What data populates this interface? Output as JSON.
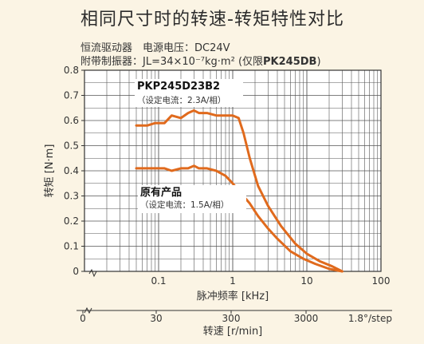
{
  "page_title": "相同尺寸时的转速-转矩特性对比",
  "conditions": {
    "line1": "恒流驱动器　电源电压：DC24V",
    "line2_prefix": "附带制振器：JL=34×10⁻⁷kg·m² (仅限",
    "line2_bold": "PK245DB",
    "line2_suffix": ")"
  },
  "chart_data": {
    "type": "line",
    "xscale": "log",
    "xlabel": "脉冲频率 [kHz]",
    "ylabel": "转矩 [N·m]",
    "ylim": [
      0,
      0.8
    ],
    "xlim": [
      0.01,
      100
    ],
    "grid": true,
    "y_ticks": [
      "0",
      "0.1",
      "0.2",
      "0.3",
      "0.4",
      "0.5",
      "0.6",
      "0.7",
      "0.8"
    ],
    "x_ticks": [
      "0.1",
      "1",
      "10",
      "100"
    ],
    "secondary_axis": {
      "label": "转速 [r/min]",
      "ticks": [
        "0",
        "30",
        "300",
        "3000"
      ],
      "end_label": "1.8°/step"
    },
    "line_color": "#e06a1d",
    "series": [
      {
        "name": "PKP245D23B2",
        "note": "（设定电流：2.3A/相）",
        "x": [
          0.05,
          0.07,
          0.09,
          0.12,
          0.15,
          0.2,
          0.25,
          0.3,
          0.35,
          0.45,
          0.6,
          0.8,
          1.0,
          1.2,
          1.4,
          1.7,
          2.2,
          3,
          4.5,
          7,
          10,
          15,
          22,
          30
        ],
        "y": [
          0.58,
          0.58,
          0.59,
          0.59,
          0.62,
          0.61,
          0.63,
          0.64,
          0.63,
          0.63,
          0.62,
          0.62,
          0.62,
          0.61,
          0.55,
          0.45,
          0.34,
          0.26,
          0.18,
          0.11,
          0.07,
          0.04,
          0.02,
          0.0
        ]
      },
      {
        "name": "原有产品",
        "note": "（设定电流：1.5A/相）",
        "x": [
          0.05,
          0.07,
          0.09,
          0.12,
          0.15,
          0.2,
          0.25,
          0.3,
          0.35,
          0.45,
          0.6,
          0.8,
          1.0,
          1.3,
          1.7,
          2.2,
          3,
          4,
          6,
          9,
          13,
          20,
          30
        ],
        "y": [
          0.41,
          0.41,
          0.41,
          0.41,
          0.4,
          0.41,
          0.41,
          0.42,
          0.41,
          0.41,
          0.4,
          0.38,
          0.35,
          0.31,
          0.27,
          0.22,
          0.17,
          0.13,
          0.08,
          0.05,
          0.03,
          0.01,
          0.0
        ]
      }
    ]
  }
}
